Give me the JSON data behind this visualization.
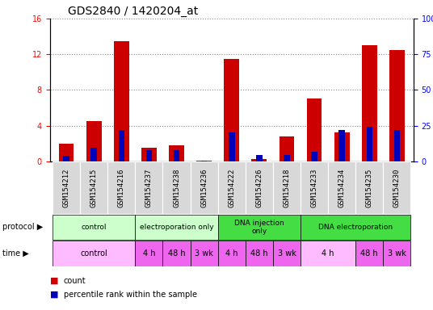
{
  "title": "GDS2840 / 1420204_at",
  "samples": [
    "GSM154212",
    "GSM154215",
    "GSM154216",
    "GSM154237",
    "GSM154238",
    "GSM154236",
    "GSM154222",
    "GSM154226",
    "GSM154218",
    "GSM154233",
    "GSM154234",
    "GSM154235",
    "GSM154230"
  ],
  "count_values": [
    2.0,
    4.5,
    13.5,
    1.5,
    1.8,
    0.05,
    11.5,
    0.2,
    2.8,
    7.0,
    3.2,
    13.0,
    12.5
  ],
  "percentile_values": [
    4.0,
    9.5,
    22.0,
    8.0,
    8.0,
    0.5,
    20.0,
    4.5,
    4.5,
    6.5,
    22.0,
    24.0,
    22.0
  ],
  "ylim_left": [
    0,
    16
  ],
  "ylim_right": [
    0,
    100
  ],
  "yticks_left": [
    0,
    4,
    8,
    12,
    16
  ],
  "yticks_right": [
    0,
    25,
    50,
    75,
    100
  ],
  "ytick_labels_right": [
    "0",
    "25",
    "50",
    "75",
    "100%"
  ],
  "bar_color_red": "#cc0000",
  "bar_color_blue": "#0000bb",
  "protocol_groups": [
    [
      0,
      2,
      "control",
      "#ccffcc"
    ],
    [
      3,
      5,
      "electroporation only",
      "#ccffcc"
    ],
    [
      6,
      8,
      "DNA injection\nonly",
      "#44dd44"
    ],
    [
      9,
      12,
      "DNA electroporation",
      "#44dd44"
    ]
  ],
  "time_groups": [
    [
      0,
      2,
      "control",
      "#ffbbff"
    ],
    [
      3,
      3,
      "4 h",
      "#ee66ee"
    ],
    [
      4,
      4,
      "48 h",
      "#ee66ee"
    ],
    [
      5,
      5,
      "3 wk",
      "#ee66ee"
    ],
    [
      6,
      6,
      "4 h",
      "#ee66ee"
    ],
    [
      7,
      7,
      "48 h",
      "#ee66ee"
    ],
    [
      8,
      8,
      "3 wk",
      "#ee66ee"
    ],
    [
      9,
      10,
      "4 h",
      "#ffbbff"
    ],
    [
      11,
      11,
      "48 h",
      "#ee66ee"
    ],
    [
      12,
      12,
      "3 wk",
      "#ee66ee"
    ]
  ],
  "grid_color": "#888888",
  "title_fontsize": 10,
  "tick_fontsize": 7,
  "sample_fontsize": 6.5,
  "row_fontsize": 7,
  "legend_fontsize": 7
}
